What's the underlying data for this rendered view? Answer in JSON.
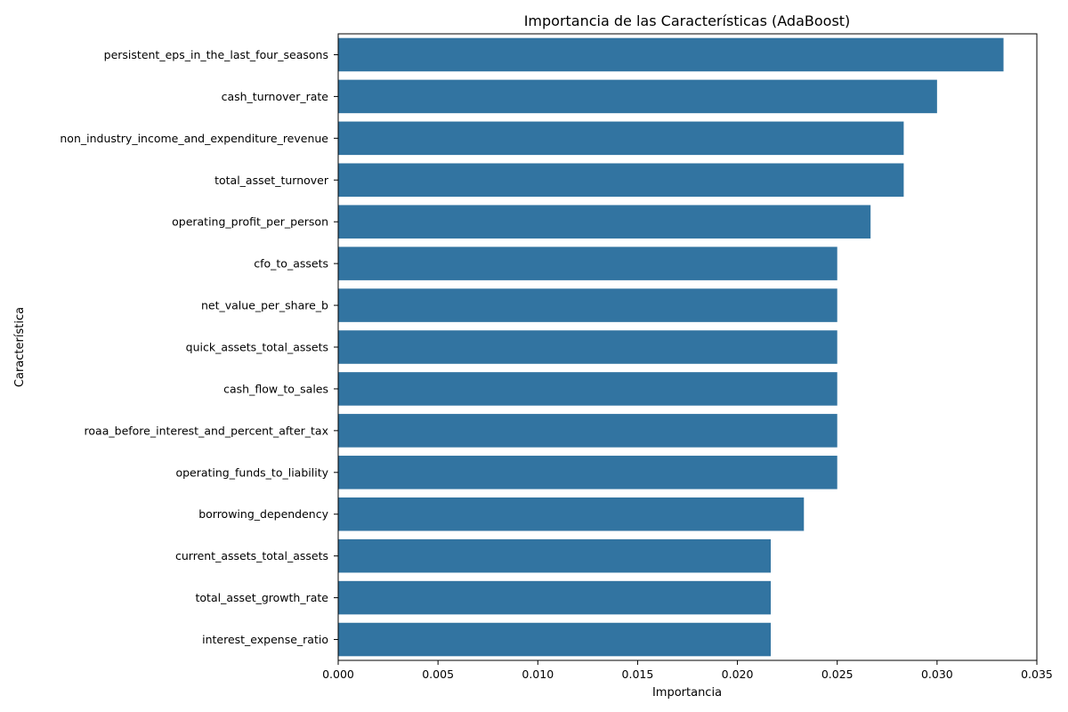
{
  "chart_data": {
    "type": "bar",
    "orientation": "horizontal",
    "title": "Importancia de las Características (AdaBoost)",
    "xlabel": "Importancia",
    "ylabel": "Característica",
    "xlim": [
      0,
      0.035
    ],
    "x_ticks": [
      "0.000",
      "0.005",
      "0.010",
      "0.015",
      "0.020",
      "0.025",
      "0.030",
      "0.035"
    ],
    "grid": false,
    "legend": "none",
    "bar_color": "#3274a1",
    "categories": [
      "persistent_eps_in_the_last_four_seasons",
      "cash_turnover_rate",
      "non_industry_income_and_expenditure_revenue",
      "total_asset_turnover",
      "operating_profit_per_person",
      "cfo_to_assets",
      "net_value_per_share_b",
      "quick_assets_total_assets",
      "cash_flow_to_sales",
      "roaa_before_interest_and_percent_after_tax",
      "operating_funds_to_liability",
      "borrowing_dependency",
      "current_assets_total_assets",
      "total_asset_growth_rate",
      "interest_expense_ratio"
    ],
    "values": [
      0.03333,
      0.03,
      0.02833,
      0.02833,
      0.02667,
      0.025,
      0.025,
      0.025,
      0.025,
      0.025,
      0.025,
      0.02333,
      0.02167,
      0.02167,
      0.02167
    ]
  }
}
